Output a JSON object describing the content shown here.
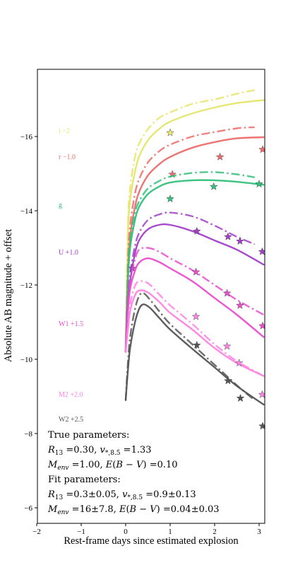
{
  "chart_data": {
    "type": "line",
    "xlabel": "Rest-frame days since estimated explosion",
    "ylabel": "Absolute AB magnitude + offset",
    "xlim": [
      -2,
      3.1
    ],
    "ylim": [
      -5.5,
      -17.3
    ],
    "y_inverted": true,
    "xticks": [
      -2,
      -1,
      0,
      1,
      2,
      3
    ],
    "yticks": [
      -6,
      -8,
      -10,
      -12,
      -14,
      -16
    ],
    "xtick_labels": [
      "−2",
      "−1",
      "0",
      "1",
      "2",
      "3"
    ],
    "ytick_labels": [
      "−6",
      "−8",
      "−10",
      "−12",
      "−14",
      "−16"
    ],
    "grid": false,
    "series": [
      {
        "name": "i −2",
        "color": "#e5e56a",
        "label_y": -16.15,
        "true_model": [
          [
            0,
            -10.2
          ],
          [
            0.05,
            -13.6
          ],
          [
            0.1,
            -14.6
          ],
          [
            0.2,
            -15.4
          ],
          [
            0.3,
            -15.8
          ],
          [
            0.5,
            -16.2
          ],
          [
            0.75,
            -16.5
          ],
          [
            1.0,
            -16.65
          ],
          [
            1.5,
            -16.88
          ],
          [
            2.0,
            -17.0
          ],
          [
            2.5,
            -17.15
          ],
          [
            2.9,
            -17.25
          ]
        ],
        "fit_model": [
          [
            0,
            -10.2
          ],
          [
            0.05,
            -13.3
          ],
          [
            0.1,
            -14.3
          ],
          [
            0.2,
            -15.0
          ],
          [
            0.3,
            -15.45
          ],
          [
            0.5,
            -15.9
          ],
          [
            0.75,
            -16.2
          ],
          [
            1.0,
            -16.4
          ],
          [
            1.5,
            -16.62
          ],
          [
            2.0,
            -16.78
          ],
          [
            2.5,
            -16.9
          ],
          [
            3.1,
            -16.98
          ]
        ],
        "observed": [
          [
            1.0,
            -16.1
          ]
        ]
      },
      {
        "name": "r −1.0",
        "color": "#ee6b6b",
        "label_y": -15.45,
        "true_model": [
          [
            0,
            -10.2
          ],
          [
            0.05,
            -12.6
          ],
          [
            0.1,
            -13.6
          ],
          [
            0.2,
            -14.4
          ],
          [
            0.3,
            -14.85
          ],
          [
            0.5,
            -15.3
          ],
          [
            0.75,
            -15.6
          ],
          [
            1.0,
            -15.78
          ],
          [
            1.5,
            -16.0
          ],
          [
            2.0,
            -16.12
          ],
          [
            2.5,
            -16.22
          ],
          [
            2.9,
            -16.25
          ]
        ],
        "fit_model": [
          [
            0,
            -10.2
          ],
          [
            0.05,
            -12.3
          ],
          [
            0.1,
            -13.3
          ],
          [
            0.2,
            -14.05
          ],
          [
            0.3,
            -14.5
          ],
          [
            0.5,
            -14.95
          ],
          [
            0.75,
            -15.25
          ],
          [
            1.0,
            -15.45
          ],
          [
            1.5,
            -15.7
          ],
          [
            2.0,
            -15.85
          ],
          [
            2.5,
            -15.95
          ],
          [
            3.1,
            -15.98
          ]
        ],
        "observed": [
          [
            1.05,
            -14.98
          ],
          [
            2.12,
            -15.45
          ],
          [
            3.08,
            -15.65
          ]
        ]
      },
      {
        "name": "g",
        "color": "#33c07a",
        "label_y": -14.15,
        "true_model": [
          [
            0,
            -10.2
          ],
          [
            0.05,
            -12.3
          ],
          [
            0.1,
            -13.2
          ],
          [
            0.2,
            -13.9
          ],
          [
            0.3,
            -14.25
          ],
          [
            0.5,
            -14.6
          ],
          [
            0.75,
            -14.8
          ],
          [
            1.0,
            -14.92
          ],
          [
            1.5,
            -15.02
          ],
          [
            2.0,
            -15.04
          ],
          [
            2.5,
            -14.98
          ],
          [
            2.9,
            -14.9
          ]
        ],
        "fit_model": [
          [
            0,
            -10.2
          ],
          [
            0.05,
            -12.1
          ],
          [
            0.1,
            -13.0
          ],
          [
            0.2,
            -13.7
          ],
          [
            0.3,
            -14.1
          ],
          [
            0.5,
            -14.45
          ],
          [
            0.75,
            -14.65
          ],
          [
            1.0,
            -14.76
          ],
          [
            1.5,
            -14.82
          ],
          [
            2.0,
            -14.82
          ],
          [
            2.5,
            -14.78
          ],
          [
            3.1,
            -14.7
          ]
        ],
        "observed": [
          [
            1.0,
            -14.32
          ],
          [
            1.98,
            -14.65
          ],
          [
            3.0,
            -14.72
          ]
        ]
      },
      {
        "name": "U +1.0",
        "color": "#a23fc9",
        "label_y": -12.88,
        "true_model": [
          [
            0,
            -10.2
          ],
          [
            0.05,
            -11.6
          ],
          [
            0.1,
            -12.3
          ],
          [
            0.2,
            -13.0
          ],
          [
            0.3,
            -13.4
          ],
          [
            0.5,
            -13.75
          ],
          [
            0.75,
            -13.9
          ],
          [
            1.0,
            -13.95
          ],
          [
            1.5,
            -13.85
          ],
          [
            2.0,
            -13.6
          ],
          [
            2.5,
            -13.3
          ],
          [
            2.9,
            -13.1
          ]
        ],
        "fit_model": [
          [
            0,
            -10.2
          ],
          [
            0.05,
            -11.5
          ],
          [
            0.1,
            -12.1
          ],
          [
            0.2,
            -12.8
          ],
          [
            0.3,
            -13.2
          ],
          [
            0.5,
            -13.5
          ],
          [
            0.75,
            -13.62
          ],
          [
            1.0,
            -13.62
          ],
          [
            1.5,
            -13.45
          ],
          [
            2.0,
            -13.2
          ],
          [
            2.5,
            -12.95
          ],
          [
            3.1,
            -12.55
          ]
        ],
        "observed": [
          [
            0.15,
            -12.45
          ],
          [
            1.6,
            -13.45
          ],
          [
            2.3,
            -13.3
          ],
          [
            2.57,
            -13.18
          ],
          [
            3.07,
            -12.9
          ]
        ]
      },
      {
        "name": "W1 +1.5",
        "color": "#ea4ccf",
        "label_y": -10.95,
        "true_model": [
          [
            0,
            -10.2
          ],
          [
            0.05,
            -11.5
          ],
          [
            0.1,
            -12.1
          ],
          [
            0.2,
            -12.65
          ],
          [
            0.3,
            -12.95
          ],
          [
            0.5,
            -13.0
          ],
          [
            0.75,
            -12.9
          ],
          [
            1.0,
            -12.72
          ],
          [
            1.5,
            -12.4
          ],
          [
            2.0,
            -12.0
          ],
          [
            2.5,
            -11.6
          ],
          [
            3.1,
            -11.2
          ]
        ],
        "fit_model": [
          [
            0,
            -10.2
          ],
          [
            0.05,
            -11.3
          ],
          [
            0.1,
            -11.9
          ],
          [
            0.2,
            -12.35
          ],
          [
            0.3,
            -12.6
          ],
          [
            0.5,
            -12.72
          ],
          [
            0.75,
            -12.62
          ],
          [
            1.0,
            -12.45
          ],
          [
            1.5,
            -12.1
          ],
          [
            2.0,
            -11.65
          ],
          [
            2.5,
            -11.2
          ],
          [
            3.1,
            -10.6
          ]
        ],
        "observed": [
          [
            1.58,
            -12.35
          ],
          [
            2.28,
            -11.78
          ],
          [
            2.57,
            -11.45
          ],
          [
            3.08,
            -10.9
          ]
        ]
      },
      {
        "name": "M2 +2.0",
        "color": "#ff82e4",
        "label_y": -9.05,
        "true_model": [
          [
            0,
            -10.2
          ],
          [
            0.05,
            -10.9
          ],
          [
            0.1,
            -11.5
          ],
          [
            0.2,
            -11.95
          ],
          [
            0.3,
            -12.1
          ],
          [
            0.5,
            -12.05
          ],
          [
            0.75,
            -11.75
          ],
          [
            1.0,
            -11.45
          ],
          [
            1.5,
            -10.95
          ],
          [
            2.0,
            -10.4
          ],
          [
            2.5,
            -9.95
          ],
          [
            3.1,
            -9.55
          ]
        ],
        "fit_model": [
          [
            0,
            -10.2
          ],
          [
            0.05,
            -10.8
          ],
          [
            0.1,
            -11.3
          ],
          [
            0.2,
            -11.7
          ],
          [
            0.3,
            -11.85
          ],
          [
            0.5,
            -11.8
          ],
          [
            0.75,
            -11.55
          ],
          [
            1.0,
            -11.25
          ],
          [
            1.5,
            -10.8
          ],
          [
            2.0,
            -10.3
          ],
          [
            2.5,
            -9.9
          ],
          [
            3.1,
            -9.55
          ]
        ],
        "observed": [
          [
            1.58,
            -11.15
          ],
          [
            2.28,
            -10.35
          ],
          [
            2.55,
            -9.9
          ],
          [
            3.07,
            -9.05
          ]
        ]
      },
      {
        "name": "W2 +2.5",
        "color": "#555555",
        "label_y": -8.38,
        "true_model": [
          [
            0,
            -8.9
          ],
          [
            0.05,
            -9.9
          ],
          [
            0.1,
            -10.6
          ],
          [
            0.2,
            -11.3
          ],
          [
            0.3,
            -11.7
          ],
          [
            0.4,
            -11.78
          ],
          [
            0.55,
            -11.6
          ],
          [
            0.75,
            -11.3
          ],
          [
            1.0,
            -10.95
          ],
          [
            1.5,
            -10.4
          ],
          [
            2.0,
            -9.85
          ],
          [
            2.5,
            -9.3
          ],
          [
            2.9,
            -8.9
          ]
        ],
        "fit_model": [
          [
            0,
            -8.9
          ],
          [
            0.05,
            -9.7
          ],
          [
            0.1,
            -10.3
          ],
          [
            0.2,
            -10.95
          ],
          [
            0.3,
            -11.35
          ],
          [
            0.4,
            -11.48
          ],
          [
            0.55,
            -11.38
          ],
          [
            0.75,
            -11.12
          ],
          [
            1.0,
            -10.8
          ],
          [
            1.5,
            -10.28
          ],
          [
            2.0,
            -9.78
          ],
          [
            2.5,
            -9.28
          ],
          [
            3.1,
            -8.78
          ]
        ],
        "observed": [
          [
            1.6,
            -10.38
          ],
          [
            2.3,
            -9.42
          ],
          [
            2.58,
            -8.95
          ],
          [
            3.08,
            -8.2
          ]
        ]
      }
    ],
    "annotations": {
      "true_heading": "True parameters:",
      "true_line1": "R13 = 0.30, v*,8.5 = 1.33",
      "true_line2": "Menv = 1.00, E(B − V) = 0.10",
      "fit_heading": "Fit parameters:",
      "fit_line1": "R13 = 0.3±0.05, v*,8.5 = 0.9±0.13",
      "fit_line2": "Menv = 16±7.8, E(B − V) = 0.04±0.03"
    },
    "annotation_parts": {
      "true_r13_val": "0.30",
      "true_v_val": "1.33",
      "true_menv_val": "1.00",
      "true_ebv_val": "0.10",
      "fit_r13_val": "0.3±0.05",
      "fit_v_val": "0.9±0.13",
      "fit_menv_val": "16±7.8",
      "fit_ebv_val": "0.04±0.03"
    }
  }
}
